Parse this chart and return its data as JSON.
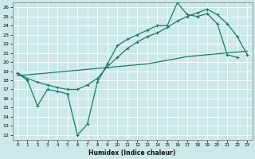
{
  "xlabel": "Humidex (Indice chaleur)",
  "bg_color": "#cde8e8",
  "grid_color": "#b0d4d4",
  "line_color": "#1a7a6e",
  "xlim": [
    -0.5,
    23.5
  ],
  "ylim": [
    11.5,
    26.5
  ],
  "xticks": [
    0,
    1,
    2,
    3,
    4,
    5,
    6,
    7,
    8,
    9,
    10,
    11,
    12,
    13,
    14,
    15,
    16,
    17,
    18,
    19,
    20,
    21,
    22,
    23
  ],
  "yticks": [
    12,
    13,
    14,
    15,
    16,
    17,
    18,
    19,
    20,
    21,
    22,
    23,
    24,
    25,
    26
  ],
  "curve1_x": [
    0,
    1,
    2,
    3,
    4,
    5,
    6,
    7,
    8,
    9,
    10,
    11,
    12,
    13,
    14,
    15,
    16,
    17,
    18,
    19,
    20,
    21,
    22
  ],
  "curve1_y": [
    18.8,
    18.0,
    15.2,
    17.0,
    16.8,
    16.5,
    12.0,
    13.2,
    17.8,
    19.8,
    21.8,
    22.5,
    23.0,
    23.5,
    24.0,
    24.0,
    26.5,
    25.2,
    25.0,
    25.3,
    24.2,
    20.8,
    20.5
  ],
  "curve2_x": [
    0,
    1,
    2,
    3,
    4,
    5,
    6,
    7,
    8,
    9,
    10,
    11,
    12,
    13,
    14,
    15,
    16,
    17,
    18,
    19,
    20,
    21,
    22,
    23
  ],
  "curve2_y": [
    18.8,
    18.2,
    17.8,
    17.5,
    17.2,
    17.0,
    17.0,
    17.5,
    18.2,
    19.5,
    20.5,
    21.5,
    22.2,
    22.8,
    23.2,
    23.8,
    24.5,
    25.0,
    25.4,
    25.8,
    25.2,
    24.2,
    22.8,
    20.8
  ],
  "curve3_x": [
    0,
    1,
    2,
    3,
    4,
    5,
    6,
    7,
    8,
    9,
    10,
    11,
    12,
    13,
    14,
    15,
    16,
    17,
    18,
    19,
    20,
    21,
    22,
    23
  ],
  "curve3_y": [
    18.5,
    18.6,
    18.7,
    18.8,
    18.9,
    19.0,
    19.1,
    19.2,
    19.3,
    19.4,
    19.5,
    19.6,
    19.7,
    19.8,
    20.0,
    20.2,
    20.4,
    20.6,
    20.7,
    20.8,
    20.9,
    21.0,
    21.1,
    21.2
  ]
}
